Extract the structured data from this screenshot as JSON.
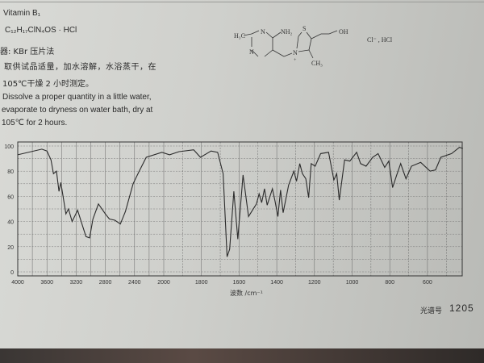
{
  "header": {
    "name_line": "Vitamin B₁",
    "formula_line": "C₁₂H₁₇ClN₄OS · HCl",
    "method_line": "器: KBr 压片法",
    "prep_cn": [
      "取供试品适量，加水溶解，水浴蒸干，在",
      "105℃干燥 2 小时测定。"
    ],
    "prep_en": [
      "Dissolve a proper quantity in a little water,",
      "evaporate to dryness on water bath, dry at",
      "105℃ for 2 hours."
    ]
  },
  "structure": {
    "labels": {
      "h3c": "H₃C",
      "n1": "N",
      "n2": "N",
      "nh2": "NH₂",
      "s": "S",
      "n_plus": "N",
      "plus": "+",
      "oh": "OH",
      "ch3": "CH₃",
      "counter_ion": "Cl⁻ , HCl"
    }
  },
  "footer": {
    "spectrum_label": "光谱号",
    "spectrum_number": "1205"
  },
  "chart_data": {
    "type": "line",
    "title": "",
    "xlabel": "波数 /cm⁻¹",
    "ylabel": "",
    "xlim": [
      4000,
      400
    ],
    "ylim": [
      0,
      100
    ],
    "x_scale": "piecewise-linear (4000–2000 compressed, 2000–400 expanded)",
    "xticks": [
      4000,
      3600,
      3200,
      2800,
      2400,
      2000,
      1800,
      1600,
      1400,
      1200,
      1000,
      800,
      600
    ],
    "yticks": [
      0,
      20,
      40,
      60,
      80,
      100
    ],
    "grid": true,
    "line_color": "#2b2b2b",
    "series": [
      {
        "x": [
          4000,
          3670,
          3600,
          3545,
          3510,
          3470,
          3435,
          3410,
          3340,
          3305,
          3255,
          3180,
          3120,
          3065,
          3015,
          2970,
          2895,
          2800,
          2745,
          2670,
          2595,
          2525,
          2420,
          2345,
          2240,
          2025,
          1969,
          1919,
          1841,
          1805,
          1749,
          1714,
          1685,
          1664,
          1650,
          1628,
          1607,
          1579,
          1550,
          1529,
          1508,
          1494,
          1480,
          1465,
          1451,
          1423,
          1409,
          1394,
          1380,
          1366,
          1337,
          1309,
          1295,
          1278,
          1264,
          1246,
          1231,
          1217,
          1196,
          1167,
          1125,
          1097,
          1082,
          1068,
          1040,
          1012,
          976,
          955,
          926,
          891,
          862,
          827,
          805,
          785,
          763,
          742,
          714,
          685,
          636,
          586,
          557,
          529,
          472,
          430,
          412
        ],
        "y": [
          93,
          97.5,
          96,
          89,
          78,
          80,
          64,
          71,
          46,
          50,
          40,
          49,
          38,
          28,
          27,
          42,
          54,
          46,
          42,
          41,
          38,
          48,
          70,
          79,
          91,
          95,
          93,
          95.5,
          97,
          91,
          96,
          95,
          78,
          12,
          18,
          64,
          26,
          77,
          44,
          49,
          54,
          62,
          55,
          66,
          53,
          66,
          56,
          44,
          65,
          47,
          69,
          80,
          72,
          86,
          78,
          74,
          59,
          86,
          84,
          94,
          95,
          73,
          78,
          57,
          89,
          88,
          95,
          86,
          84,
          91,
          94,
          83,
          88,
          67,
          77,
          86,
          74,
          84,
          87,
          80,
          81,
          91,
          94,
          99,
          98
        ]
      }
    ]
  }
}
